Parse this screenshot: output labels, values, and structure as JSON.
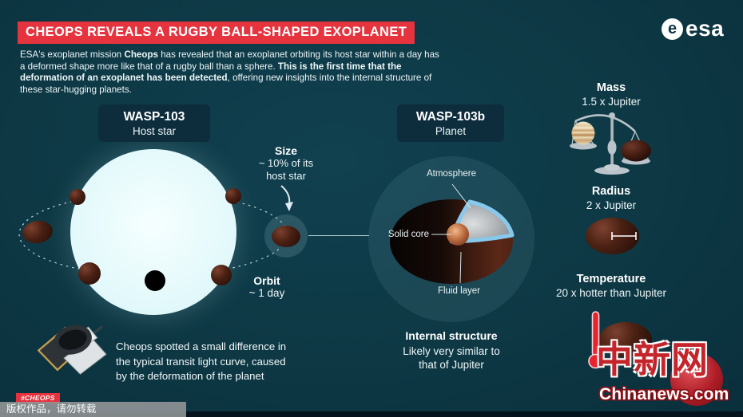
{
  "header": {
    "title": "CHEOPS REVEALS A RUGBY BALL-SHAPED EXOPLANET",
    "esa_globe": "e",
    "esa_wordmark": "esa"
  },
  "intro_segments": [
    {
      "text": "ESA's exoplanet mission ",
      "bold": false
    },
    {
      "text": "Cheops",
      "bold": true
    },
    {
      "text": " has revealed that an exoplanet orbiting its host star within a day has a deformed shape more like that of a rugby ball than a sphere. ",
      "bold": false
    },
    {
      "text": "This is the first time that the deformation of an exoplanet has been detected",
      "bold": true
    },
    {
      "text": ", offering new insights into the internal structure of these star-hugging planets.",
      "bold": false
    }
  ],
  "host_star": {
    "name": "WASP-103",
    "type": "Host star"
  },
  "planet": {
    "name": "WASP-103b",
    "type": "Planet"
  },
  "size_callout": {
    "title": "Size",
    "line1": "~ 10% of its",
    "line2": "host star"
  },
  "orbit_callout": {
    "title": "Orbit",
    "value": "~ 1 day"
  },
  "structure_labels": {
    "atmosphere": "Atmosphere",
    "solid_core": "Solid core",
    "fluid_layer": "Fluid layer"
  },
  "internal_structure": {
    "title": "Internal structure",
    "line1": "Likely very similar to",
    "line2": "that of Jupiter"
  },
  "facts": {
    "mass": {
      "title": "Mass",
      "value": "1.5 x Jupiter"
    },
    "radius": {
      "title": "Radius",
      "value": "2 x Jupiter"
    },
    "temperature": {
      "title": "Temperature",
      "value": "20 x hotter than Jupiter"
    }
  },
  "cheops_note": {
    "line1": "Cheops spotted a small difference in",
    "line2": "the typical transit light curve, caused",
    "line3": "by the deformation of the planet"
  },
  "hashtag": "#CHEOPS",
  "watermarks": {
    "copyright": "版权作品，请勿转载",
    "brand_cn": "中新网",
    "brand_en": "Chinanews.com"
  },
  "colors": {
    "background": "#0d3845",
    "accent_red": "#e6343f",
    "star": "#e7fbfd",
    "planet_maroon": "#42190f",
    "atmosphere_blue": "#86c9ec",
    "label_box": "#0d2c3c"
  }
}
